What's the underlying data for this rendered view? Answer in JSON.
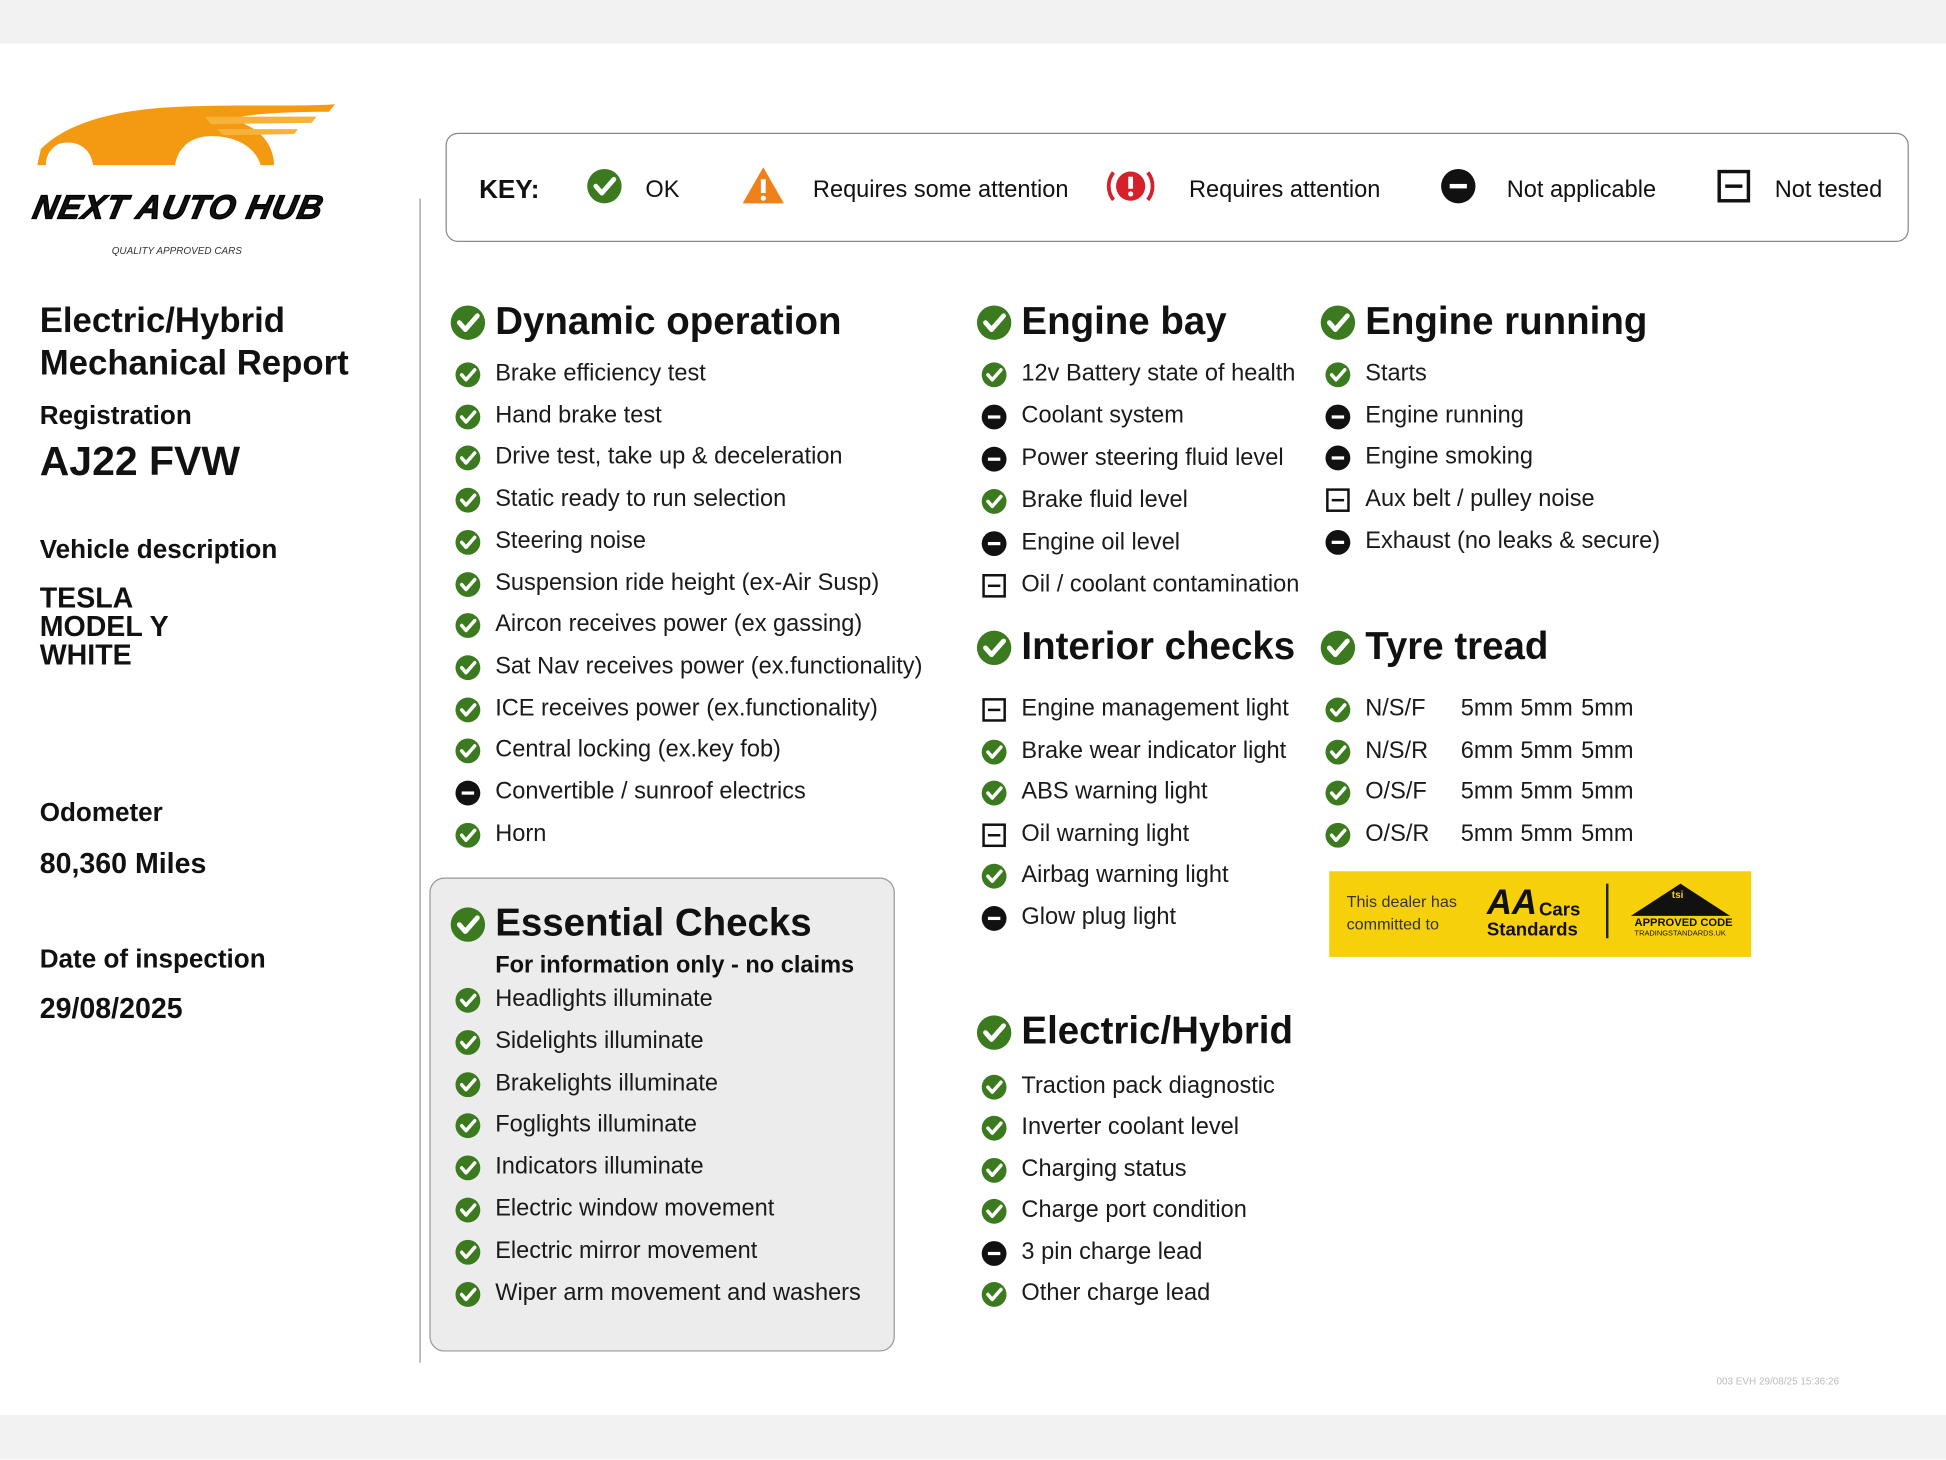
{
  "logo": {
    "name": "NEXT AUTO HUB",
    "tagline": "QUALITY APPROVED CARS"
  },
  "key": {
    "label": "KEY:",
    "items": [
      {
        "icon": "ok",
        "text": "OK"
      },
      {
        "icon": "warn",
        "text": "Requires some attention"
      },
      {
        "icon": "alert",
        "text": "Requires attention"
      },
      {
        "icon": "na",
        "text": "Not applicable"
      },
      {
        "icon": "nt",
        "text": "Not tested"
      }
    ]
  },
  "vehicle": {
    "title": [
      "Electric/Hybrid",
      "Mechanical Report"
    ],
    "registration_label": "Registration",
    "registration": "AJ22 FVW",
    "description_label": "Vehicle description",
    "description": [
      "TESLA",
      "MODEL Y",
      "WHITE"
    ],
    "odometer_label": "Odometer",
    "odometer": "80,360 Miles",
    "date_label": "Date of inspection",
    "date": "29/08/2025"
  },
  "sections": [
    {
      "title": "Dynamic operation",
      "status": "ok",
      "items": [
        {
          "text": "Brake efficiency test",
          "status": "ok"
        },
        {
          "text": "Hand brake test",
          "status": "ok"
        },
        {
          "text": "Drive test, take up & deceleration",
          "status": "ok"
        },
        {
          "text": "Static ready to run selection",
          "status": "ok"
        },
        {
          "text": "Steering noise",
          "status": "ok"
        },
        {
          "text": "Suspension ride height (ex-Air Susp)",
          "status": "ok"
        },
        {
          "text": "Aircon receives power (ex gassing)",
          "status": "ok"
        },
        {
          "text": "Sat Nav receives power (ex.functionality)",
          "status": "ok"
        },
        {
          "text": "ICE receives power (ex.functionality)",
          "status": "ok"
        },
        {
          "text": "Central locking (ex.key fob)",
          "status": "ok"
        },
        {
          "text": "Convertible / sunroof electrics",
          "status": "na"
        },
        {
          "text": "Horn",
          "status": "ok"
        }
      ]
    },
    {
      "title": "Engine bay",
      "status": "ok",
      "items": [
        {
          "text": "12v Battery state of health",
          "status": "ok"
        },
        {
          "text": "Coolant system",
          "status": "na"
        },
        {
          "text": "Power steering fluid level",
          "status": "na"
        },
        {
          "text": "Brake fluid level",
          "status": "ok"
        },
        {
          "text": "Engine oil level",
          "status": "na"
        },
        {
          "text": "Oil / coolant contamination",
          "status": "nt"
        }
      ]
    },
    {
      "title": "Engine running",
      "status": "ok",
      "items": [
        {
          "text": "Starts",
          "status": "ok"
        },
        {
          "text": "Engine running",
          "status": "na"
        },
        {
          "text": "Engine smoking",
          "status": "na"
        },
        {
          "text": "Aux belt / pulley noise",
          "status": "nt"
        },
        {
          "text": "Exhaust (no leaks & secure)",
          "status": "na"
        }
      ]
    },
    {
      "title": "Interior checks",
      "status": "ok",
      "items": [
        {
          "text": "Engine management light",
          "status": "nt"
        },
        {
          "text": "Brake wear indicator light",
          "status": "ok"
        },
        {
          "text": "ABS warning light",
          "status": "ok"
        },
        {
          "text": "Oil warning light",
          "status": "nt"
        },
        {
          "text": "Airbag warning light",
          "status": "ok"
        },
        {
          "text": "Glow plug light",
          "status": "na"
        }
      ]
    },
    {
      "title": "Electric/Hybrid",
      "status": "ok",
      "items": [
        {
          "text": "Traction pack diagnostic",
          "status": "ok"
        },
        {
          "text": "Inverter coolant level",
          "status": "ok"
        },
        {
          "text": "Charging status",
          "status": "ok"
        },
        {
          "text": "Charge port condition",
          "status": "ok"
        },
        {
          "text": "3 pin charge lead",
          "status": "na"
        },
        {
          "text": "Other charge lead",
          "status": "ok"
        }
      ]
    },
    {
      "title": "Essential Checks",
      "subtitle": "For information only - no claims",
      "status": "ok",
      "items": [
        {
          "text": "Headlights illuminate",
          "status": "ok"
        },
        {
          "text": "Sidelights illuminate",
          "status": "ok"
        },
        {
          "text": "Brakelights illuminate",
          "status": "ok"
        },
        {
          "text": "Foglights illuminate",
          "status": "ok"
        },
        {
          "text": "Indicators illuminate",
          "status": "ok"
        },
        {
          "text": "Electric window movement",
          "status": "ok"
        },
        {
          "text": "Electric mirror movement",
          "status": "ok"
        },
        {
          "text": "Wiper arm movement and washers",
          "status": "ok"
        }
      ]
    }
  ],
  "tyres": {
    "title": "Tyre tread",
    "status": "ok",
    "rows": [
      {
        "position": "N/S/F",
        "status": "ok",
        "readings": [
          "5mm",
          "5mm",
          "5mm"
        ]
      },
      {
        "position": "N/S/R",
        "status": "ok",
        "readings": [
          "6mm",
          "5mm",
          "5mm"
        ]
      },
      {
        "position": "O/S/F",
        "status": "ok",
        "readings": [
          "5mm",
          "5mm",
          "5mm"
        ]
      },
      {
        "position": "O/S/R",
        "status": "ok",
        "readings": [
          "5mm",
          "5mm",
          "5mm"
        ]
      }
    ]
  },
  "badge": {
    "text": [
      "This dealer has",
      "committed to"
    ],
    "brand": "AA",
    "brand_sub": [
      "Cars",
      "Standards"
    ],
    "code": "APPROVED CODE",
    "code_sub": "TRADINGSTANDARDS.UK",
    "tsi": "tsi"
  },
  "footer": {
    "stamp": "003 EVH 29/08/25 15:36:26"
  }
}
